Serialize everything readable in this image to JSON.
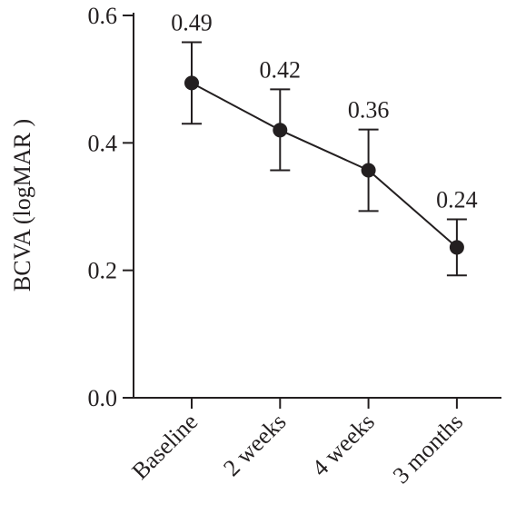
{
  "chart_data": {
    "type": "line",
    "title": "",
    "xlabel": "",
    "ylabel": "BCVA (logMAR )",
    "categories": [
      "Baseline",
      "2 weeks",
      "4 weeks",
      "3 months"
    ],
    "series": [
      {
        "values": [
          0.494,
          0.42,
          0.357,
          0.236
        ],
        "error_low": [
          0.43,
          0.357,
          0.293,
          0.192
        ],
        "error_high": [
          0.558,
          0.484,
          0.421,
          0.28
        ],
        "data_labels": [
          "0.49",
          "0.42",
          "0.36",
          "0.24"
        ]
      }
    ],
    "ylim": [
      0,
      0.6
    ],
    "yticks": [
      0.0,
      0.2,
      0.4,
      0.6
    ],
    "ytick_labels": [
      "0.0",
      "0.2",
      "0.4",
      "0.6"
    ],
    "grid": false,
    "legend": "none",
    "color": "#231f20"
  }
}
